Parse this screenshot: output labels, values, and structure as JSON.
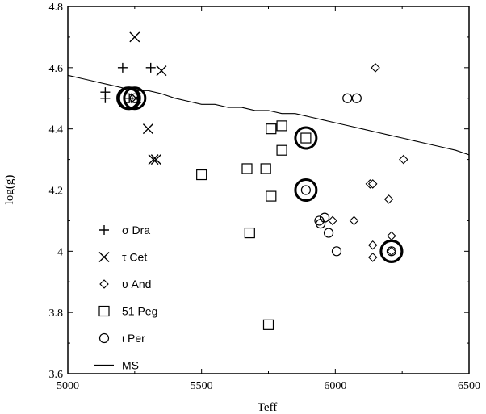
{
  "chart_data": {
    "type": "scatter",
    "xlabel": "Teff",
    "ylabel": "log(g)",
    "xlim": [
      5000,
      6500
    ],
    "ylim": [
      3.6,
      4.8
    ],
    "xticks": [
      "5000",
      "5500",
      "6000",
      "6500"
    ],
    "yticks": [
      "3.6",
      "3.8",
      "4",
      "4.2",
      "4.4",
      "4.6",
      "4.8"
    ],
    "grid": false,
    "legend_position": "lower-left",
    "series": [
      {
        "name": "σ Dra",
        "marker": "plus",
        "points": [
          [
            5140,
            4.5
          ],
          [
            5140,
            4.52
          ],
          [
            5205,
            4.6
          ],
          [
            5310,
            4.6
          ],
          [
            5230,
            4.5
          ]
        ],
        "highlight": [
          [
            5230,
            4.5
          ]
        ]
      },
      {
        "name": "τ Cet",
        "marker": "x",
        "points": [
          [
            5250,
            4.7
          ],
          [
            5350,
            4.59
          ],
          [
            5300,
            4.4
          ],
          [
            5320,
            4.3
          ],
          [
            5330,
            4.3
          ],
          [
            5255,
            4.5
          ]
        ]
      },
      {
        "name": "υ And",
        "marker": "diamond",
        "points": [
          [
            6150,
            4.6
          ],
          [
            6255,
            4.3
          ],
          [
            6130,
            4.22
          ],
          [
            6140,
            4.22
          ],
          [
            6200,
            4.17
          ],
          [
            6070,
            4.1
          ],
          [
            5990,
            4.1
          ],
          [
            6140,
            4.02
          ],
          [
            6210,
            4.05
          ],
          [
            6140,
            3.98
          ],
          [
            6210,
            4.0
          ]
        ],
        "highlight": [
          [
            6210,
            4.0
          ]
        ]
      },
      {
        "name": "51 Peg",
        "marker": "square",
        "points": [
          [
            5500,
            4.25
          ],
          [
            5670,
            4.27
          ],
          [
            5740,
            4.27
          ],
          [
            5760,
            4.4
          ],
          [
            5800,
            4.41
          ],
          [
            5800,
            4.33
          ],
          [
            5760,
            4.18
          ],
          [
            5680,
            4.06
          ],
          [
            5750,
            3.76
          ],
          [
            5890,
            4.37
          ]
        ],
        "highlight": [
          [
            5890,
            4.37
          ]
        ]
      },
      {
        "name": "ι Per",
        "marker": "circle",
        "points": [
          [
            6045,
            4.5
          ],
          [
            6080,
            4.5
          ],
          [
            5890,
            4.2
          ],
          [
            5960,
            4.11
          ],
          [
            5940,
            4.1
          ],
          [
            5945,
            4.09
          ],
          [
            5975,
            4.06
          ],
          [
            6005,
            4.0
          ],
          [
            6210,
            4.0
          ],
          [
            5250,
            4.5
          ],
          [
            5225,
            4.5
          ]
        ],
        "highlight": [
          [
            5890,
            4.2
          ],
          [
            6210,
            4.0
          ],
          [
            5250,
            4.5
          ],
          [
            5225,
            4.5
          ]
        ]
      },
      {
        "name": "MS",
        "marker": "line",
        "line": [
          [
            5000,
            4.575
          ],
          [
            5050,
            4.565
          ],
          [
            5100,
            4.555
          ],
          [
            5150,
            4.545
          ],
          [
            5200,
            4.535
          ],
          [
            5250,
            4.525
          ],
          [
            5300,
            4.525
          ],
          [
            5350,
            4.515
          ],
          [
            5400,
            4.5
          ],
          [
            5450,
            4.49
          ],
          [
            5500,
            4.48
          ],
          [
            5550,
            4.48
          ],
          [
            5600,
            4.47
          ],
          [
            5650,
            4.47
          ],
          [
            5700,
            4.46
          ],
          [
            5750,
            4.46
          ],
          [
            5800,
            4.45
          ],
          [
            5850,
            4.45
          ],
          [
            5900,
            4.44
          ],
          [
            5950,
            4.43
          ],
          [
            6000,
            4.42
          ],
          [
            6050,
            4.41
          ],
          [
            6100,
            4.4
          ],
          [
            6150,
            4.39
          ],
          [
            6200,
            4.38
          ],
          [
            6250,
            4.37
          ],
          [
            6300,
            4.36
          ],
          [
            6350,
            4.35
          ],
          [
            6400,
            4.34
          ],
          [
            6450,
            4.33
          ],
          [
            6500,
            4.315
          ]
        ]
      }
    ]
  }
}
